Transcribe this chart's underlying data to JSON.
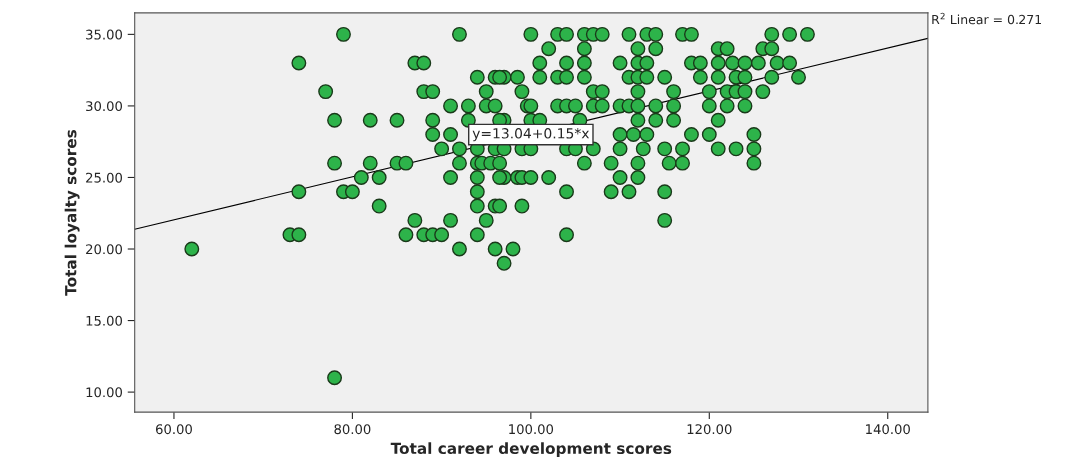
{
  "chart_data": {
    "type": "scatter",
    "xlabel": "Total career development scores",
    "ylabel": "Total loyalty scores",
    "xlim": [
      55.6,
      144.5
    ],
    "ylim": [
      8.6,
      36.5
    ],
    "xticks": [
      {
        "value": 60,
        "label": "60.00"
      },
      {
        "value": 80,
        "label": "80.00"
      },
      {
        "value": 100,
        "label": "100.00"
      },
      {
        "value": 120,
        "label": "120.00"
      },
      {
        "value": 140,
        "label": "140.00"
      }
    ],
    "yticks": [
      {
        "value": 10,
        "label": "10.00"
      },
      {
        "value": 15,
        "label": "15.00"
      },
      {
        "value": 20,
        "label": "20.00"
      },
      {
        "value": 25,
        "label": "25.00"
      },
      {
        "value": 30,
        "label": "30.00"
      },
      {
        "value": 35,
        "label": "35.00"
      }
    ],
    "grid": false,
    "series": [
      {
        "marker": "circle",
        "color": "#2db34a",
        "x": [
          79,
          92,
          100,
          103,
          104,
          106,
          107,
          108,
          111,
          113,
          114,
          117,
          118,
          127,
          129,
          131,
          102,
          106,
          112,
          114,
          121,
          122,
          126,
          127,
          74,
          87,
          88,
          101,
          104,
          106,
          110,
          112,
          113,
          118,
          119,
          121,
          122.6,
          124,
          125.5,
          127.6,
          129,
          94,
          96,
          97,
          98.5,
          96.5,
          101,
          103,
          104,
          106,
          111,
          112,
          113,
          115,
          119,
          121,
          123,
          124,
          127,
          130,
          77,
          88,
          89,
          95,
          99,
          107,
          108,
          112,
          116,
          120,
          122,
          123,
          124,
          126,
          91,
          93,
          95,
          96,
          99.6,
          100,
          103,
          104,
          105,
          107,
          108,
          110,
          111,
          112,
          114,
          116,
          120,
          122,
          124,
          78,
          82,
          85,
          89,
          93,
          97,
          100,
          96.5,
          101,
          105.5,
          112,
          114,
          116,
          121,
          89,
          91,
          110,
          111.5,
          113,
          118,
          120,
          125,
          90,
          92,
          94,
          96,
          97,
          99,
          100,
          104,
          105,
          107,
          110,
          112.6,
          115,
          117,
          121,
          123,
          125,
          78,
          82,
          85,
          86,
          92,
          94,
          94.5,
          95.5,
          96.5,
          106,
          109,
          112,
          115.5,
          117,
          125,
          81,
          83,
          91,
          94,
          97,
          98.5,
          96.5,
          99,
          100,
          102,
          110,
          112,
          74,
          79,
          80,
          94,
          104,
          109,
          111,
          115,
          83,
          94,
          96,
          99,
          96.5,
          87,
          91,
          95,
          115,
          73,
          74,
          86,
          88,
          89,
          90,
          94,
          104,
          62,
          92,
          96,
          98,
          97,
          78
        ],
        "values": [
          35,
          35,
          35,
          35,
          35,
          35,
          35,
          35,
          35,
          35,
          35,
          35,
          35,
          35,
          35,
          35,
          34,
          34,
          34,
          34,
          34,
          34,
          34,
          34,
          33,
          33,
          33,
          33,
          33,
          33,
          33,
          33,
          33,
          33,
          33,
          33,
          33,
          33,
          33,
          33,
          33,
          32,
          32,
          32,
          32,
          32,
          32,
          32,
          32,
          32,
          32,
          32,
          32,
          32,
          32,
          32,
          32,
          32,
          32,
          32,
          31,
          31,
          31,
          31,
          31,
          31,
          31,
          31,
          31,
          31,
          31,
          31,
          31,
          31,
          30,
          30,
          30,
          30,
          30,
          30,
          30,
          30,
          30,
          30,
          30,
          30,
          30,
          30,
          30,
          30,
          30,
          30,
          30,
          29,
          29,
          29,
          29,
          29,
          29,
          29,
          29,
          29,
          29,
          29,
          29,
          29,
          29,
          28,
          28,
          28,
          28,
          28,
          28,
          28,
          28,
          27,
          27,
          27,
          27,
          27,
          27,
          27,
          27,
          27,
          27,
          27,
          27,
          27,
          27,
          27,
          27,
          27,
          26,
          26,
          26,
          26,
          26,
          26,
          26,
          26,
          26,
          26,
          26,
          26,
          26,
          26,
          26,
          25,
          25,
          25,
          25,
          25,
          25,
          25,
          25,
          25,
          25,
          25,
          25,
          24,
          24,
          24,
          24,
          24,
          24,
          24,
          24,
          23,
          23,
          23,
          23,
          23,
          22,
          22,
          22,
          22,
          21,
          21,
          21,
          21,
          21,
          21,
          21,
          21,
          20,
          20,
          20,
          20,
          19,
          11
        ]
      },
      {
        "type": "line",
        "marker": "none",
        "color": "#000000",
        "x": [
          55.6,
          144.5
        ],
        "values": [
          21.38,
          34.72
        ]
      }
    ],
    "annotations": [
      "R$^{2}$ Linear = 0.271",
      {
        "text": "y=13.04+0.15*x",
        "x": 100,
        "y": 28
      }
    ]
  }
}
